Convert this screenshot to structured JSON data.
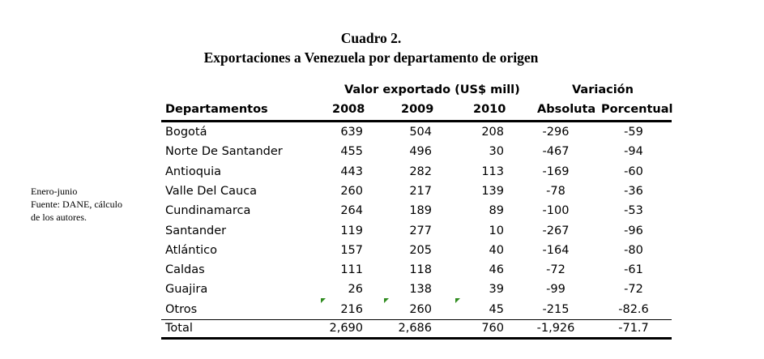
{
  "caption": {
    "number": "Cuadro 2.",
    "title": "Exportaciones a Venezuela por departamento de origen"
  },
  "note": {
    "line1": "Enero-junio",
    "line2": "Fuente: DANE, cálculo",
    "line3": "de los autores."
  },
  "header": {
    "group_value": "Valor exportado (US$ mill)",
    "group_variation": "Variación",
    "col_department": "Departamentos",
    "col_2008": "2008",
    "col_2009": "2009",
    "col_2010": "2010",
    "col_absolute": "Absoluta",
    "col_percent": "Porcentual"
  },
  "rows": [
    {
      "dept": "Bogotá",
      "y2008": "639",
      "y2009": "504",
      "y2010": "208",
      "abs": "-296",
      "pct": "-59"
    },
    {
      "dept": "Norte De Santander",
      "y2008": "455",
      "y2009": "496",
      "y2010": "30",
      "abs": "-467",
      "pct": "-94"
    },
    {
      "dept": "Antioquia",
      "y2008": "443",
      "y2009": "282",
      "y2010": "113",
      "abs": "-169",
      "pct": "-60"
    },
    {
      "dept": "Valle Del Cauca",
      "y2008": "260",
      "y2009": "217",
      "y2010": "139",
      "abs": "-78",
      "pct": "-36"
    },
    {
      "dept": "Cundinamarca",
      "y2008": "264",
      "y2009": "189",
      "y2010": "89",
      "abs": "-100",
      "pct": "-53"
    },
    {
      "dept": "Santander",
      "y2008": "119",
      "y2009": "277",
      "y2010": "10",
      "abs": "-267",
      "pct": "-96"
    },
    {
      "dept": "Atlántico",
      "y2008": "157",
      "y2009": "205",
      "y2010": "40",
      "abs": "-164",
      "pct": "-80"
    },
    {
      "dept": "Caldas",
      "y2008": "111",
      "y2009": "118",
      "y2010": "46",
      "abs": "-72",
      "pct": "-61"
    },
    {
      "dept": "Guajira",
      "y2008": "26",
      "y2009": "138",
      "y2010": "39",
      "abs": "-99",
      "pct": "-72"
    },
    {
      "dept": "Otros",
      "y2008": "216",
      "y2009": "260",
      "y2010": "45",
      "abs": "-215",
      "pct": "-82.6"
    }
  ],
  "total": {
    "dept": "Total",
    "y2008": "2,690",
    "y2009": "2,686",
    "y2010": "760",
    "abs": "-1,926",
    "pct": "-71.7"
  },
  "colors": {
    "text": "#000000",
    "rule": "#000000",
    "error_marker": "#2e8b1e"
  }
}
